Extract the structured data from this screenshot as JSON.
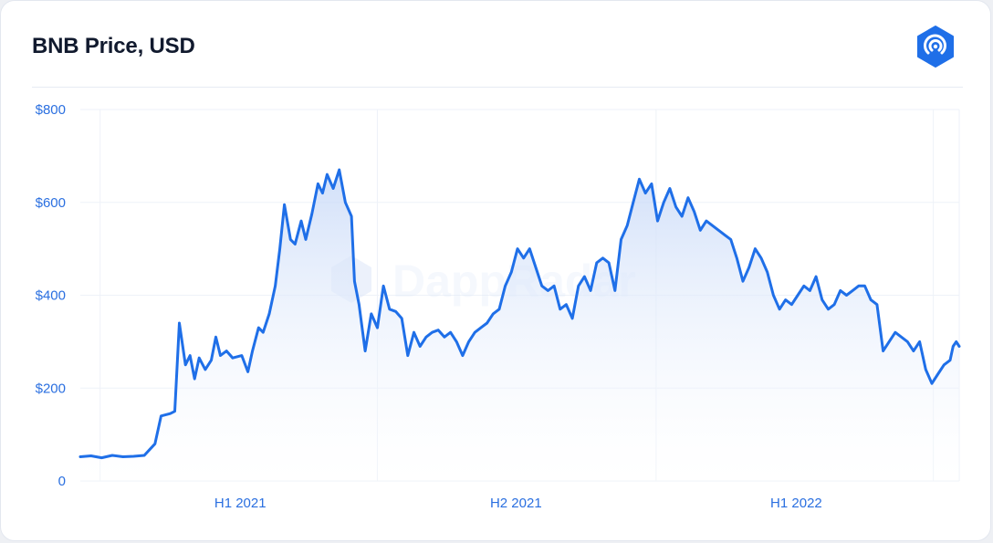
{
  "title": "BNB Price, USD",
  "brand_icon": "dappradar-logo-icon",
  "watermark": "DappRadar",
  "colors": {
    "line": "#1f6fe8",
    "fill_top": "#c9daf8",
    "fill_bottom": "#ffffff",
    "axis_text": "#2a6fe0",
    "grid": "#eef2f8",
    "logo": "#1f6fe8"
  },
  "chart_data": {
    "type": "area",
    "title": "BNB Price, USD",
    "xlabel": "",
    "ylabel": "",
    "ylim": [
      0,
      800
    ],
    "y_ticks": [
      {
        "value": 800,
        "label": "$800"
      },
      {
        "value": 600,
        "label": "$600"
      },
      {
        "value": 400,
        "label": "$400"
      },
      {
        "value": 200,
        "label": "$200"
      },
      {
        "value": 0,
        "label": "0"
      }
    ],
    "x_ticks": [
      {
        "date": "2021-01-01",
        "label": "H1 2021"
      },
      {
        "date": "2021-07-01",
        "label": "H2 2021"
      },
      {
        "date": "2022-01-01",
        "label": "H1 2022"
      }
    ],
    "x_gridlines": [
      "2020-10-01",
      "2021-04-01",
      "2021-10-01",
      "2022-04-01"
    ],
    "xlim": [
      "2020-09-18",
      "2022-04-18"
    ],
    "grid": true,
    "legend": "none",
    "series": [
      {
        "points": [
          [
            "2020-09-18",
            52
          ],
          [
            "2020-09-25",
            54
          ],
          [
            "2020-10-02",
            50
          ],
          [
            "2020-10-09",
            55
          ],
          [
            "2020-10-16",
            52
          ],
          [
            "2020-10-23",
            53
          ],
          [
            "2020-10-30",
            55
          ],
          [
            "2020-11-06",
            80
          ],
          [
            "2020-11-10",
            140
          ],
          [
            "2020-11-16",
            145
          ],
          [
            "2020-11-19",
            150
          ],
          [
            "2020-11-22",
            340
          ],
          [
            "2020-11-26",
            250
          ],
          [
            "2020-11-29",
            270
          ],
          [
            "2020-12-02",
            220
          ],
          [
            "2020-12-05",
            265
          ],
          [
            "2020-12-09",
            240
          ],
          [
            "2020-12-13",
            260
          ],
          [
            "2020-12-16",
            310
          ],
          [
            "2020-12-19",
            270
          ],
          [
            "2020-12-23",
            280
          ],
          [
            "2020-12-27",
            265
          ],
          [
            "2021-01-02",
            270
          ],
          [
            "2021-01-06",
            235
          ],
          [
            "2021-01-09",
            280
          ],
          [
            "2021-01-13",
            330
          ],
          [
            "2021-01-16",
            320
          ],
          [
            "2021-01-20",
            360
          ],
          [
            "2021-01-24",
            420
          ],
          [
            "2021-01-27",
            500
          ],
          [
            "2021-01-30",
            595
          ],
          [
            "2021-02-03",
            520
          ],
          [
            "2021-02-06",
            510
          ],
          [
            "2021-02-10",
            560
          ],
          [
            "2021-02-13",
            520
          ],
          [
            "2021-02-17",
            575
          ],
          [
            "2021-02-21",
            640
          ],
          [
            "2021-02-24",
            620
          ],
          [
            "2021-02-27",
            660
          ],
          [
            "2021-03-03",
            630
          ],
          [
            "2021-03-07",
            670
          ],
          [
            "2021-03-11",
            600
          ],
          [
            "2021-03-15",
            570
          ],
          [
            "2021-03-17",
            430
          ],
          [
            "2021-03-20",
            380
          ],
          [
            "2021-03-24",
            280
          ],
          [
            "2021-03-28",
            360
          ],
          [
            "2021-04-01",
            330
          ],
          [
            "2021-04-05",
            420
          ],
          [
            "2021-04-09",
            370
          ],
          [
            "2021-04-13",
            365
          ],
          [
            "2021-04-17",
            350
          ],
          [
            "2021-04-21",
            270
          ],
          [
            "2021-04-25",
            320
          ],
          [
            "2021-04-29",
            290
          ],
          [
            "2021-05-03",
            310
          ],
          [
            "2021-05-07",
            320
          ],
          [
            "2021-05-11",
            325
          ],
          [
            "2021-05-15",
            310
          ],
          [
            "2021-05-19",
            320
          ],
          [
            "2021-05-23",
            300
          ],
          [
            "2021-05-27",
            270
          ],
          [
            "2021-05-31",
            300
          ],
          [
            "2021-06-04",
            320
          ],
          [
            "2021-06-08",
            330
          ],
          [
            "2021-06-12",
            340
          ],
          [
            "2021-06-16",
            360
          ],
          [
            "2021-06-20",
            370
          ],
          [
            "2021-06-24",
            420
          ],
          [
            "2021-06-28",
            450
          ],
          [
            "2021-07-02",
            500
          ],
          [
            "2021-07-06",
            480
          ],
          [
            "2021-07-10",
            500
          ],
          [
            "2021-07-14",
            460
          ],
          [
            "2021-07-18",
            420
          ],
          [
            "2021-07-22",
            410
          ],
          [
            "2021-07-26",
            420
          ],
          [
            "2021-07-30",
            370
          ],
          [
            "2021-08-03",
            380
          ],
          [
            "2021-08-07",
            350
          ],
          [
            "2021-08-11",
            420
          ],
          [
            "2021-08-15",
            440
          ],
          [
            "2021-08-19",
            410
          ],
          [
            "2021-08-23",
            470
          ],
          [
            "2021-08-27",
            480
          ],
          [
            "2021-08-31",
            470
          ],
          [
            "2021-09-04",
            410
          ],
          [
            "2021-09-08",
            520
          ],
          [
            "2021-09-12",
            550
          ],
          [
            "2021-09-16",
            600
          ],
          [
            "2021-09-20",
            650
          ],
          [
            "2021-09-24",
            620
          ],
          [
            "2021-09-28",
            640
          ],
          [
            "2021-10-02",
            560
          ],
          [
            "2021-10-06",
            600
          ],
          [
            "2021-10-10",
            630
          ],
          [
            "2021-10-14",
            590
          ],
          [
            "2021-10-18",
            570
          ],
          [
            "2021-10-22",
            610
          ],
          [
            "2021-10-26",
            580
          ],
          [
            "2021-10-30",
            540
          ],
          [
            "2021-11-03",
            560
          ],
          [
            "2021-11-07",
            550
          ],
          [
            "2021-11-11",
            540
          ],
          [
            "2021-11-15",
            530
          ],
          [
            "2021-11-19",
            520
          ],
          [
            "2021-11-23",
            480
          ],
          [
            "2021-11-27",
            430
          ],
          [
            "2021-12-01",
            460
          ],
          [
            "2021-12-05",
            500
          ],
          [
            "2021-12-09",
            480
          ],
          [
            "2021-12-13",
            450
          ],
          [
            "2021-12-17",
            400
          ],
          [
            "2021-12-21",
            370
          ],
          [
            "2021-12-25",
            390
          ],
          [
            "2021-12-29",
            380
          ],
          [
            "2022-01-02",
            400
          ],
          [
            "2022-01-06",
            420
          ],
          [
            "2022-01-10",
            410
          ],
          [
            "2022-01-14",
            440
          ],
          [
            "2022-01-18",
            390
          ],
          [
            "2022-01-22",
            370
          ],
          [
            "2022-01-26",
            380
          ],
          [
            "2022-01-30",
            410
          ],
          [
            "2022-02-03",
            400
          ],
          [
            "2022-02-07",
            410
          ],
          [
            "2022-02-11",
            420
          ],
          [
            "2022-02-15",
            420
          ],
          [
            "2022-02-19",
            390
          ],
          [
            "2022-02-23",
            380
          ],
          [
            "2022-02-27",
            280
          ],
          [
            "2022-03-03",
            300
          ],
          [
            "2022-03-07",
            320
          ],
          [
            "2022-03-11",
            310
          ],
          [
            "2022-03-15",
            300
          ],
          [
            "2022-03-19",
            280
          ],
          [
            "2022-03-23",
            300
          ],
          [
            "2022-03-27",
            240
          ],
          [
            "2022-03-31",
            210
          ],
          [
            "2022-04-04",
            230
          ],
          [
            "2022-04-08",
            250
          ],
          [
            "2022-04-12",
            260
          ],
          [
            "2022-04-14",
            290
          ],
          [
            "2022-04-16",
            300
          ],
          [
            "2022-04-18",
            290
          ]
        ]
      }
    ]
  }
}
